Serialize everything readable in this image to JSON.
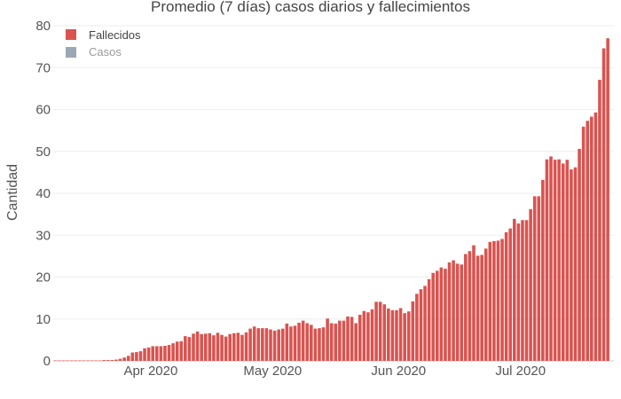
{
  "chart_data": {
    "type": "bar",
    "title": "Promedio (7 días) casos diarios y fallecimientos",
    "ylabel": "Cantidad",
    "xlabel": "",
    "ylim": [
      0,
      80
    ],
    "yticks": [
      0,
      10,
      20,
      30,
      40,
      50,
      60,
      70,
      80
    ],
    "x_start_date": "2020-03-08",
    "x_end_date": "2020-07-23",
    "x_ticks": [
      {
        "date": "2020-04-01",
        "label": "Apr 2020"
      },
      {
        "date": "2020-05-01",
        "label": "May 2020"
      },
      {
        "date": "2020-06-01",
        "label": "Jun 2020"
      },
      {
        "date": "2020-07-01",
        "label": "Jul 2020"
      }
    ],
    "legend": {
      "position": "top-left",
      "items": [
        {
          "name": "Fallecidos",
          "color": "#d9534f",
          "active": true
        },
        {
          "name": "Casos",
          "color": "#9aa7b5",
          "active": false
        }
      ]
    },
    "grid": true,
    "series": [
      {
        "name": "Fallecidos",
        "color": "#d9534f",
        "values": [
          0.1,
          0.1,
          0.1,
          0.1,
          0.1,
          0.1,
          0.1,
          0.1,
          0.1,
          0.1,
          0.1,
          0.1,
          0.2,
          0.2,
          0.2,
          0.3,
          0.5,
          0.8,
          1.2,
          2,
          2.1,
          2.3,
          3,
          3.2,
          3.5,
          3.5,
          3.5,
          3.6,
          3.8,
          4.2,
          4.6,
          4.7,
          5.9,
          5.7,
          6.5,
          7,
          6.4,
          6.5,
          6.6,
          6.1,
          6.7,
          6.2,
          5.8,
          6.4,
          6.6,
          6.7,
          6.2,
          6.8,
          7.7,
          8.2,
          7.8,
          7.8,
          7.8,
          7.5,
          7.2,
          7.5,
          7.7,
          8.9,
          8.2,
          8.4,
          9.1,
          9.6,
          9,
          8.6,
          7.7,
          7.8,
          8,
          10.1,
          9,
          8.9,
          9.6,
          9.6,
          10.6,
          10.5,
          9,
          11,
          11.9,
          11.6,
          12.3,
          14.1,
          14.1,
          13.5,
          12.5,
          12.1,
          12.1,
          12.6,
          11.4,
          11.8,
          14.2,
          16,
          17.1,
          17.9,
          19.5,
          21,
          21.5,
          22.3,
          22,
          23.5,
          24,
          23.2,
          23,
          25.5,
          26.2,
          27.6,
          25.1,
          25.3,
          26.8,
          28.4,
          28.6,
          28.7,
          29.1,
          30.7,
          31.6,
          33.9,
          32.8,
          33.6,
          33.6,
          36.2,
          39.3,
          39.3,
          43.2,
          48.1,
          48.8,
          48,
          48.1,
          47.1,
          48,
          45.7,
          46.2,
          50.6,
          55.9,
          57.3,
          58.3,
          59.3,
          67.1,
          74.6,
          77
        ]
      }
    ]
  }
}
